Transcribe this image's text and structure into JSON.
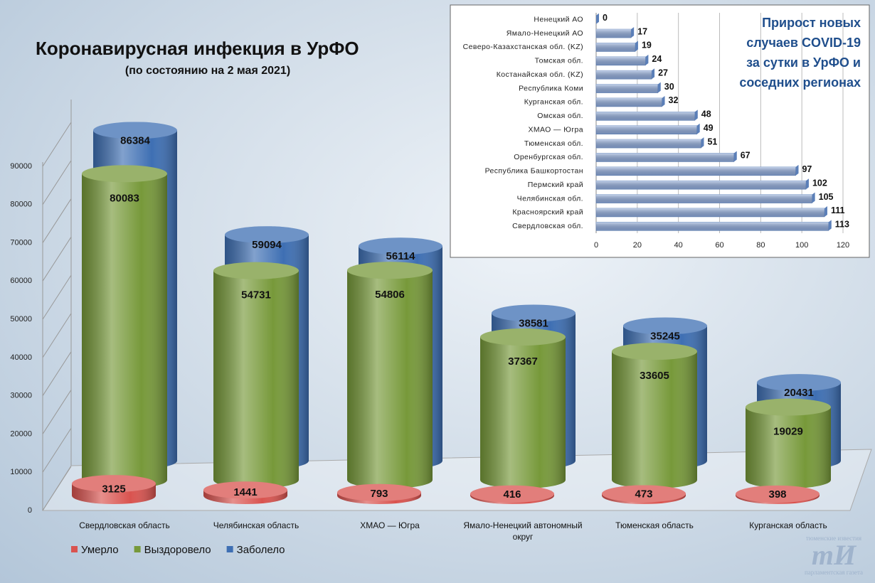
{
  "chart_data": [
    {
      "type": "bar",
      "title": "Коронавирусная инфекция в УрФО",
      "subtitle": "(по состоянию на 2 мая 2021)",
      "categories": [
        "Свердловская область",
        "Челябинская область",
        "ХМАО — Югра",
        "Ямало-Ненецкий автономный округ",
        "Тюменская область",
        "Курганская область"
      ],
      "series": [
        {
          "name": "Умерло",
          "color": "#d9534f",
          "values": [
            3125,
            1441,
            793,
            416,
            473,
            398
          ]
        },
        {
          "name": "Выздоровело",
          "color": "#77993a",
          "values": [
            80083,
            54731,
            54806,
            37367,
            33605,
            19029
          ]
        },
        {
          "name": "Заболело",
          "color": "#3e6fb3",
          "values": [
            86384,
            59094,
            56114,
            38581,
            35245,
            20431
          ]
        }
      ],
      "ylim": [
        0,
        90000
      ],
      "yticks": [
        0,
        10000,
        20000,
        30000,
        40000,
        50000,
        60000,
        70000,
        80000,
        90000
      ],
      "legend": "bottom"
    },
    {
      "type": "bar",
      "orientation": "horizontal",
      "title": "Прирост новых случаев COVID-19 за сутки в УрФО и соседних регионах",
      "categories": [
        "Ненецкий АО",
        "Ямало-Ненецкий АО",
        "Северо-Казахстанская обл. (KZ)",
        "Томская обл.",
        "Костанайская обл. (KZ)",
        "Республика Коми",
        "Курганская обл.",
        "Омская обл.",
        "ХМАО — Югра",
        "Тюменская обл.",
        "Оренбургская обл.",
        "Республика Башкортостан",
        "Пермский край",
        "Челябинская обл.",
        "Красноярский край",
        "Свердловская обл."
      ],
      "values": [
        0,
        17,
        19,
        24,
        27,
        30,
        32,
        48,
        49,
        51,
        67,
        97,
        102,
        105,
        111,
        113
      ],
      "color": "#8eaadb",
      "xlim": [
        0,
        120
      ],
      "xticks": [
        0,
        20,
        40,
        60,
        80,
        100,
        120
      ],
      "grid": true
    }
  ],
  "watermark": {
    "top": "тюменские известия",
    "logo": "тИ",
    "bottom": "парламентская газета"
  }
}
